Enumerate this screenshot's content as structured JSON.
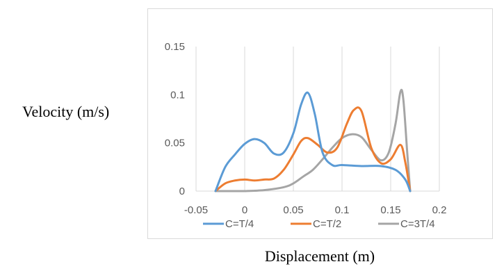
{
  "chart_data": {
    "type": "line",
    "title": "",
    "xlabel": "Displacement (m)",
    "ylabel": "Velocity (m/s)",
    "xlim": [
      -0.05,
      0.2
    ],
    "ylim": [
      0,
      0.15
    ],
    "x_ticks": [
      "-0.05",
      "0",
      "0.05",
      "0.1",
      "0.15",
      "0.2"
    ],
    "y_ticks": [
      "0",
      "0.05",
      "0.1",
      "0.15"
    ],
    "grid": "vertical",
    "legend_position": "bottom",
    "series": [
      {
        "name": "C=T/4",
        "color": "#5b9bd5",
        "points": [
          [
            -0.03,
            0.0
          ],
          [
            -0.02,
            0.025
          ],
          [
            -0.01,
            0.038
          ],
          [
            0.0,
            0.049
          ],
          [
            0.01,
            0.054
          ],
          [
            0.02,
            0.05
          ],
          [
            0.03,
            0.039
          ],
          [
            0.04,
            0.04
          ],
          [
            0.05,
            0.06
          ],
          [
            0.058,
            0.09
          ],
          [
            0.065,
            0.102
          ],
          [
            0.072,
            0.08
          ],
          [
            0.08,
            0.04
          ],
          [
            0.09,
            0.027
          ],
          [
            0.1,
            0.027
          ],
          [
            0.12,
            0.026
          ],
          [
            0.14,
            0.026
          ],
          [
            0.155,
            0.022
          ],
          [
            0.165,
            0.012
          ],
          [
            0.17,
            0.0
          ]
        ]
      },
      {
        "name": "C=T/2",
        "color": "#ed7d31",
        "points": [
          [
            -0.03,
            0.0
          ],
          [
            -0.02,
            0.008
          ],
          [
            -0.01,
            0.011
          ],
          [
            0.0,
            0.012
          ],
          [
            0.01,
            0.011
          ],
          [
            0.02,
            0.012
          ],
          [
            0.03,
            0.013
          ],
          [
            0.04,
            0.022
          ],
          [
            0.05,
            0.038
          ],
          [
            0.058,
            0.052
          ],
          [
            0.065,
            0.055
          ],
          [
            0.075,
            0.048
          ],
          [
            0.085,
            0.04
          ],
          [
            0.095,
            0.045
          ],
          [
            0.105,
            0.07
          ],
          [
            0.112,
            0.084
          ],
          [
            0.12,
            0.083
          ],
          [
            0.13,
            0.045
          ],
          [
            0.14,
            0.029
          ],
          [
            0.15,
            0.033
          ],
          [
            0.16,
            0.048
          ],
          [
            0.165,
            0.03
          ],
          [
            0.17,
            0.0
          ]
        ]
      },
      {
        "name": "C=3T/4",
        "color": "#a5a5a5",
        "points": [
          [
            -0.03,
            0.0
          ],
          [
            -0.01,
            0.0
          ],
          [
            0.0,
            0.0
          ],
          [
            0.02,
            0.001
          ],
          [
            0.04,
            0.004
          ],
          [
            0.05,
            0.008
          ],
          [
            0.06,
            0.015
          ],
          [
            0.07,
            0.022
          ],
          [
            0.08,
            0.033
          ],
          [
            0.09,
            0.045
          ],
          [
            0.1,
            0.055
          ],
          [
            0.11,
            0.059
          ],
          [
            0.12,
            0.056
          ],
          [
            0.13,
            0.043
          ],
          [
            0.14,
            0.032
          ],
          [
            0.148,
            0.04
          ],
          [
            0.155,
            0.07
          ],
          [
            0.16,
            0.103
          ],
          [
            0.163,
            0.095
          ],
          [
            0.167,
            0.04
          ],
          [
            0.17,
            0.0
          ]
        ]
      }
    ]
  }
}
